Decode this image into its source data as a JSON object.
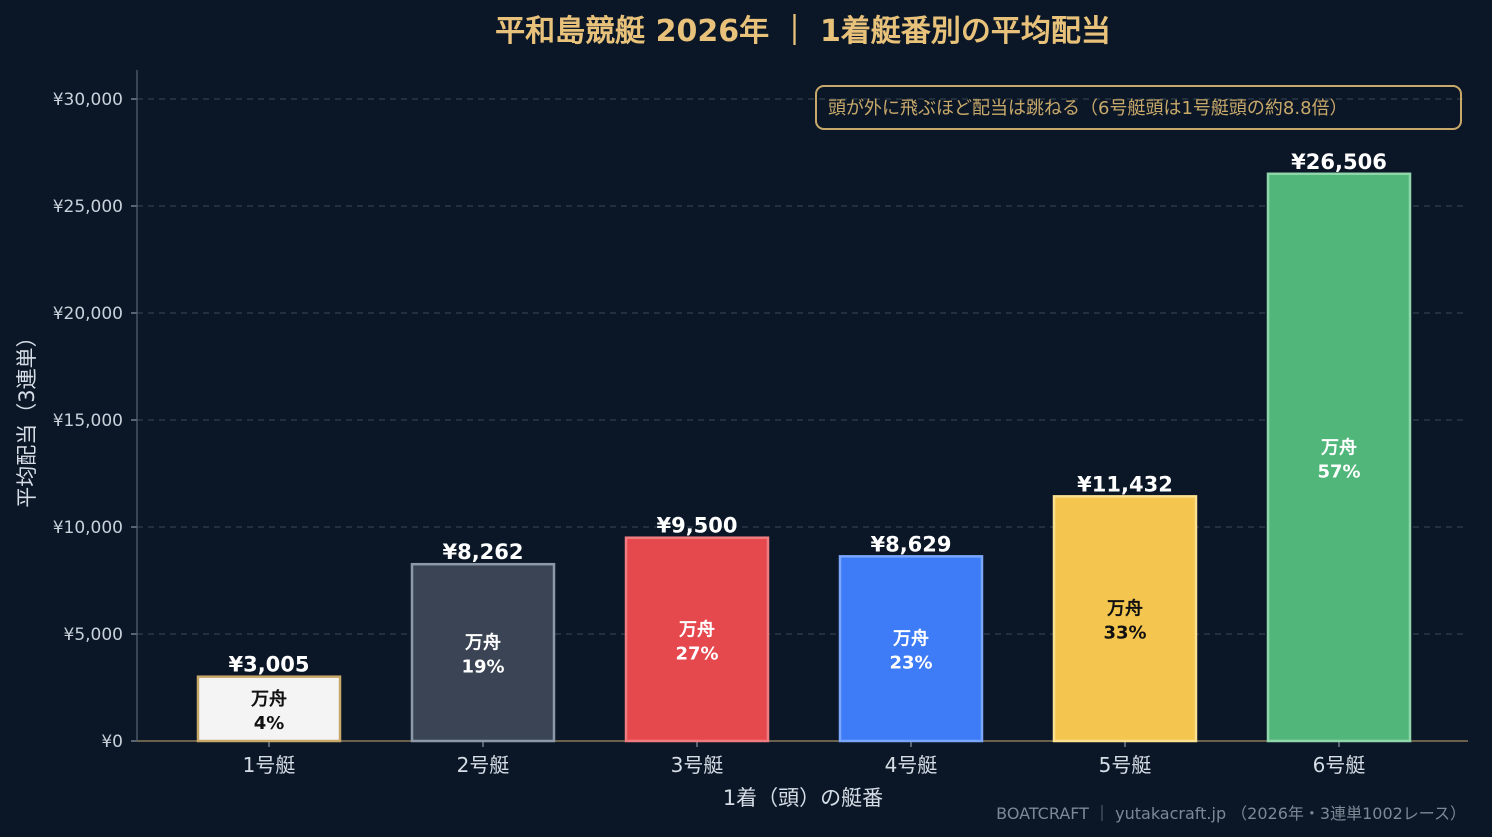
{
  "chart_data": {
    "type": "bar",
    "title": "平和島競艇 2026年 ｜ 1着艇番別の平均配当",
    "xlabel": "1着（頭）の艇番",
    "ylabel": "平均配当（3連単）",
    "categories": [
      "1号艇",
      "2号艇",
      "3号艇",
      "4号艇",
      "5号艇",
      "6号艇"
    ],
    "values": [
      3005,
      8262,
      9500,
      8629,
      11432,
      26506
    ],
    "value_labels": [
      "¥3,005",
      "¥8,262",
      "¥9,500",
      "¥8,629",
      "¥11,432",
      "¥26,506"
    ],
    "inner_label_title": "万舟",
    "inner_percents": [
      "4%",
      "19%",
      "27%",
      "23%",
      "33%",
      "57%"
    ],
    "ylim": [
      0,
      30000
    ],
    "yticks": [
      0,
      5000,
      10000,
      15000,
      20000,
      25000,
      30000
    ],
    "ytick_labels": [
      "¥0",
      "¥5,000",
      "¥10,000",
      "¥15,000",
      "¥20,000",
      "¥25,000",
      "¥30,000"
    ],
    "grid": true,
    "colors": {
      "fills": [
        "#f4f4f4",
        "#3a4454",
        "#e5484d",
        "#3d7bf7",
        "#f5c64f",
        "#50b67a"
      ],
      "strokes": [
        "#c9a96a",
        "#8d98a8",
        "#f07c80",
        "#7aa6fb",
        "#fbe08f",
        "#8fd7ab"
      ],
      "inner_text": [
        "#111111",
        "#ffffff",
        "#ffffff",
        "#ffffff",
        "#111111",
        "#ffffff"
      ]
    },
    "annotation": "頭が外に飛ぶほど配当は跳ねる（6号艇頭は1号艇頭の約8.8倍）",
    "footer": "BOATCRAFT ｜ yutakacraft.jp （2026年・3連単1002レース）"
  }
}
